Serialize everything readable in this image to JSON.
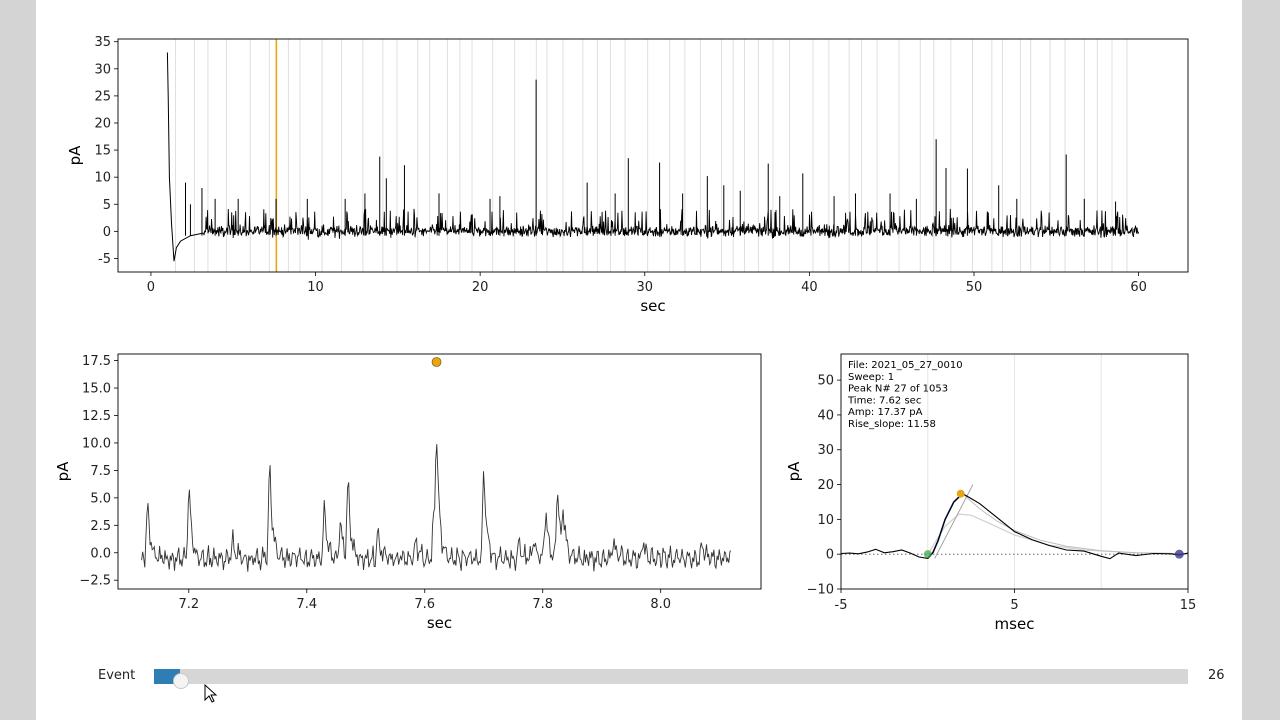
{
  "window": {
    "background": "#d4d4d4",
    "figure_background": "#ffffff"
  },
  "colors": {
    "trace": "#000000",
    "event_lines": "#d8d8d8",
    "highlight": "#e8a712",
    "onset": "#3da53d",
    "end": "#3a3a8c",
    "slider_fill": "#2e7db5",
    "slider_track": "#d6d6d6"
  },
  "chart_data": [
    {
      "id": "overview",
      "type": "line",
      "title": "",
      "xlabel": "sec",
      "ylabel": "pA",
      "xlim": [
        -2,
        63
      ],
      "ylim": [
        -7.5,
        35.5
      ],
      "xticks": [
        0,
        10,
        20,
        30,
        40,
        50,
        60
      ],
      "yticks": [
        -5,
        0,
        5,
        10,
        15,
        20,
        25,
        30,
        35
      ],
      "trace_start_sec": 1.0,
      "trace_end_sec": 60.0,
      "baseline_pA": 0,
      "noise_band_pA": [
        -1.8,
        2.5
      ],
      "initial_artifact": [
        [
          1.0,
          33.0
        ],
        [
          1.05,
          25.0
        ],
        [
          1.12,
          10.0
        ],
        [
          1.25,
          1.5
        ],
        [
          1.4,
          -5.5
        ],
        [
          1.55,
          -3.0
        ],
        [
          1.8,
          -1.8
        ],
        [
          2.4,
          -0.8
        ],
        [
          3.2,
          -0.3
        ]
      ],
      "tall_peaks": [
        [
          2.1,
          9
        ],
        [
          2.4,
          5
        ],
        [
          3.1,
          8
        ],
        [
          3.9,
          6
        ],
        [
          5.3,
          6
        ],
        [
          7.6,
          6
        ],
        [
          9.5,
          6
        ],
        [
          11.8,
          6
        ],
        [
          13.0,
          7
        ],
        [
          13.9,
          13.8
        ],
        [
          14.3,
          9.8
        ],
        [
          15.4,
          12.2
        ],
        [
          17.5,
          7
        ],
        [
          20.6,
          6
        ],
        [
          21.2,
          6.5
        ],
        [
          23.4,
          28
        ],
        [
          26.5,
          9
        ],
        [
          28.2,
          7
        ],
        [
          29.0,
          13.5
        ],
        [
          30.9,
          12.7
        ],
        [
          32.3,
          7
        ],
        [
          33.8,
          10.2
        ],
        [
          34.8,
          8.5
        ],
        [
          35.8,
          7.5
        ],
        [
          37.5,
          12.5
        ],
        [
          38.2,
          6.5
        ],
        [
          39.6,
          10.7
        ],
        [
          41.5,
          6.5
        ],
        [
          42.8,
          7
        ],
        [
          44.9,
          7
        ],
        [
          46.5,
          6
        ],
        [
          47.7,
          17
        ],
        [
          48.3,
          11.7
        ],
        [
          49.6,
          11.6
        ],
        [
          51.5,
          8.5
        ],
        [
          52.6,
          6
        ],
        [
          55.6,
          14.2
        ],
        [
          56.7,
          6
        ],
        [
          58.6,
          5.5
        ]
      ],
      "highlight_event_sec": 7.62
    },
    {
      "id": "zoom",
      "type": "line",
      "title": "",
      "xlabel": "sec",
      "ylabel": "pA",
      "xlim": [
        7.08,
        8.17
      ],
      "ylim": [
        -3.3,
        18.1
      ],
      "xticks": [
        7.2,
        7.4,
        7.6,
        7.8,
        8.0
      ],
      "xtick_labels": [
        "7.2",
        "7.4",
        "7.6",
        "7.8",
        "8.0"
      ],
      "yticks": [
        -2.5,
        0.0,
        2.5,
        5.0,
        7.5,
        10.0,
        12.5,
        15.0,
        17.5
      ],
      "ytick_labels": [
        "−2.5",
        "0.0",
        "2.5",
        "5.0",
        "7.5",
        "10.0",
        "12.5",
        "15.0",
        "17.5"
      ],
      "trace_start_sec": 7.12,
      "trace_end_sec": 8.12,
      "baseline_pA": -0.5,
      "peaks": [
        [
          7.13,
          4.7
        ],
        [
          7.2,
          6.8
        ],
        [
          7.275,
          1.3
        ],
        [
          7.337,
          8.8
        ],
        [
          7.43,
          4.4
        ],
        [
          7.457,
          3.0
        ],
        [
          7.47,
          6.9
        ],
        [
          7.52,
          2.2
        ],
        [
          7.585,
          1.2
        ],
        [
          7.615,
          3.0
        ],
        [
          7.62,
          10.9
        ],
        [
          7.7,
          8.4
        ],
        [
          7.76,
          1.0
        ],
        [
          7.785,
          1.4
        ],
        [
          7.805,
          4.5
        ],
        [
          7.825,
          6.8
        ],
        [
          7.835,
          3.6
        ],
        [
          7.92,
          1.2
        ],
        [
          7.97,
          1.3
        ],
        [
          8.07,
          1.0
        ]
      ],
      "highlight_marker": [
        7.62,
        17.37
      ]
    },
    {
      "id": "event",
      "type": "line",
      "title": "",
      "xlabel": "msec",
      "ylabel": "pA",
      "xlim": [
        -5,
        15
      ],
      "ylim": [
        -10,
        57.5
      ],
      "xticks": [
        -5,
        5,
        15
      ],
      "yticks": [
        -10,
        0,
        10,
        20,
        30,
        40,
        50
      ],
      "ytick_labels": [
        "−10",
        "0",
        "10",
        "20",
        "30",
        "40",
        "50"
      ],
      "event_lines_ms": [
        0,
        5,
        10
      ],
      "trace": [
        [
          -5,
          0.2
        ],
        [
          -4.5,
          0.3
        ],
        [
          -4,
          0.1
        ],
        [
          -3.5,
          0.6
        ],
        [
          -3,
          1.4
        ],
        [
          -2.5,
          0.4
        ],
        [
          -2,
          0.7
        ],
        [
          -1.5,
          1.2
        ],
        [
          -1,
          0.3
        ],
        [
          -0.5,
          -0.8
        ],
        [
          0,
          -1.2
        ],
        [
          0.3,
          0.5
        ],
        [
          0.6,
          4
        ],
        [
          1.0,
          10
        ],
        [
          1.5,
          15
        ],
        [
          2.0,
          17.4
        ],
        [
          2.5,
          16
        ],
        [
          3.0,
          14.5
        ],
        [
          3.5,
          12.5
        ],
        [
          4.0,
          10.5
        ],
        [
          4.5,
          8.5
        ],
        [
          5.0,
          6.5
        ],
        [
          6.0,
          4.2
        ],
        [
          7.0,
          2.5
        ],
        [
          8.0,
          1.2
        ],
        [
          9.0,
          0.9
        ],
        [
          10.0,
          -0.6
        ],
        [
          10.5,
          -1.3
        ],
        [
          11.0,
          0.3
        ],
        [
          12.0,
          -0.4
        ],
        [
          13.0,
          0.2
        ],
        [
          14.0,
          0.1
        ],
        [
          14.5,
          -0.2
        ],
        [
          15.0,
          0.3
        ]
      ],
      "fit_curve": [
        [
          0.0,
          0
        ],
        [
          1.0,
          8
        ],
        [
          1.8,
          11.5
        ],
        [
          2.5,
          11.2
        ],
        [
          3.5,
          9
        ],
        [
          5.0,
          5.5
        ],
        [
          7.0,
          2.6
        ],
        [
          9.0,
          1.2
        ],
        [
          12.0,
          0.4
        ],
        [
          15.0,
          0.1
        ]
      ],
      "decay_curve": [
        [
          2.0,
          17.4
        ],
        [
          3.0,
          13
        ],
        [
          4.0,
          9.5
        ],
        [
          5.0,
          6.8
        ],
        [
          6.5,
          4.0
        ],
        [
          8.0,
          2.3
        ],
        [
          10.0,
          1.0
        ],
        [
          12.0,
          0.4
        ],
        [
          15.0,
          0.1
        ]
      ],
      "slope_line": [
        [
          0.4,
          -1.2
        ],
        [
          2.6,
          20
        ]
      ],
      "markers": {
        "onset": [
          0.0,
          0.0
        ],
        "peak": [
          1.9,
          17.37
        ],
        "end": [
          14.5,
          0.0
        ]
      },
      "info": {
        "file": "File: 2021_05_27_0010",
        "sweep": "Sweep: 1",
        "peak": "Peak N# 27 of 1053",
        "time": "Time: 7.62 sec",
        "amp": "Amp: 17.37 pA",
        "rise": "Rise_slope: 11.58"
      }
    }
  ],
  "slider": {
    "label": "Event",
    "value": 26,
    "value_text": "26",
    "min": 0,
    "max": 1052
  }
}
